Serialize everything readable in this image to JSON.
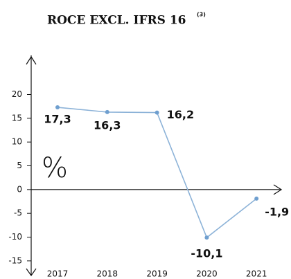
{
  "chart_data": {
    "type": "line",
    "title": "ROCE EXCL. IFRS 16",
    "title_note": "(3)",
    "unit_label": "%",
    "categories": [
      "2017",
      "2018",
      "2019",
      "2020",
      "2021"
    ],
    "series": [
      {
        "name": "ROCE",
        "color": "#8db3d8",
        "values": [
          17.3,
          16.3,
          16.2,
          -10.1,
          -1.9
        ],
        "value_labels": [
          "17,3",
          "16,3",
          "16,2",
          "-10,1",
          "-1,9"
        ]
      }
    ],
    "ylim": [
      -17.5,
      27.5
    ],
    "yticks": [
      -15,
      -10,
      -5,
      0,
      5,
      10,
      15,
      20
    ]
  }
}
